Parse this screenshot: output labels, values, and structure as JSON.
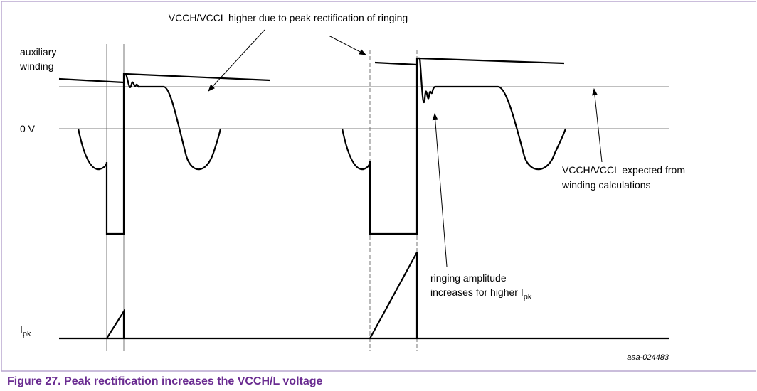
{
  "annotations": {
    "top": "VCCH/VCCL higher due to peak rectification of ringing",
    "aux": [
      "auxiliary",
      "winding"
    ],
    "zero": "0 V",
    "expected": [
      "VCCH/VCCL expected from",
      "winding calculations"
    ],
    "ringing": {
      "line1": "ringing amplitude",
      "line2": "increases for higher I",
      "sub": "pk"
    },
    "ipk": {
      "main": "I",
      "sub": "pk"
    }
  },
  "figure": {
    "id": "aaa-024483",
    "caption": "Figure 27.  Peak rectification increases the VCCH/L voltage"
  }
}
